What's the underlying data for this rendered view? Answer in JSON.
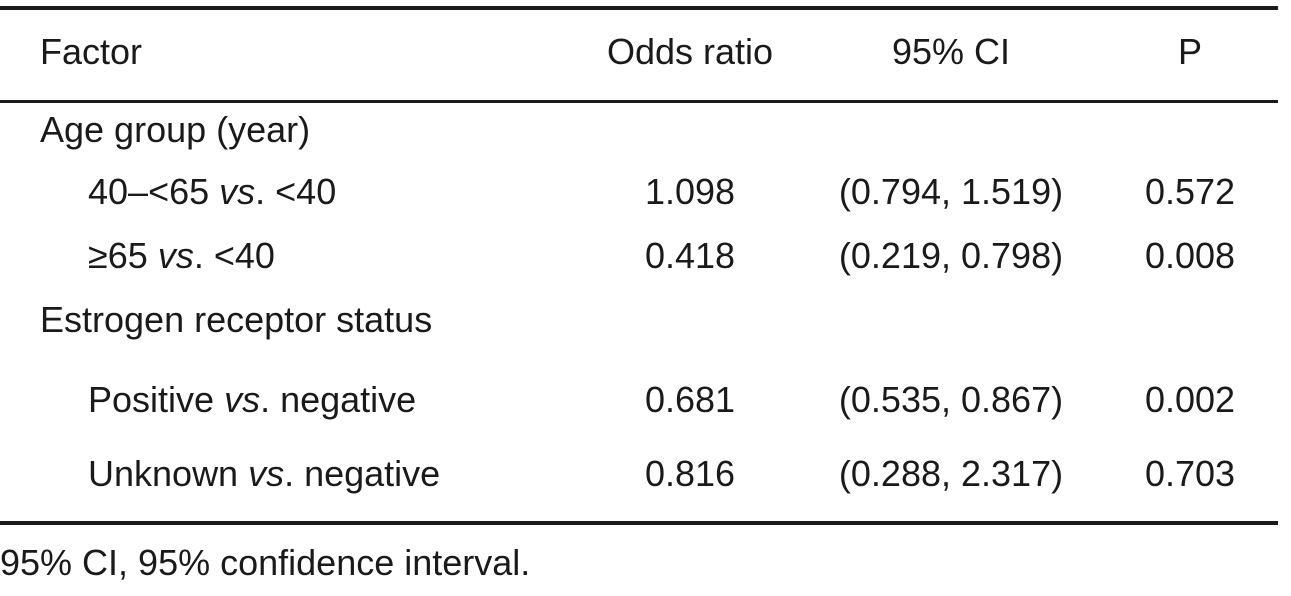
{
  "table": {
    "headers": {
      "factor": "Factor",
      "odds_ratio": "Odds ratio",
      "ci": "95% CI",
      "p": "P"
    },
    "groups": [
      {
        "label": "Age group (year)",
        "rows": [
          {
            "left": "40–<65 ",
            "vs": "vs",
            "right": ". <40",
            "odds_ratio": "1.098",
            "ci": "(0.794, 1.519)",
            "p": "0.572"
          },
          {
            "left": "≥65 ",
            "vs": "vs",
            "right": ". <40",
            "odds_ratio": "0.418",
            "ci": "(0.219, 0.798)",
            "p": "0.008"
          }
        ]
      },
      {
        "label": "Estrogen receptor status",
        "rows": [
          {
            "left": "Positive ",
            "vs": "vs",
            "right": ". negative",
            "odds_ratio": "0.681",
            "ci": "(0.535, 0.867)",
            "p": "0.002"
          },
          {
            "left": "Unknown ",
            "vs": "vs",
            "right": ". negative",
            "odds_ratio": "0.816",
            "ci": "(0.288, 2.317)",
            "p": "0.703"
          }
        ]
      }
    ],
    "footnote": "95% CI, 95% confidence interval."
  }
}
